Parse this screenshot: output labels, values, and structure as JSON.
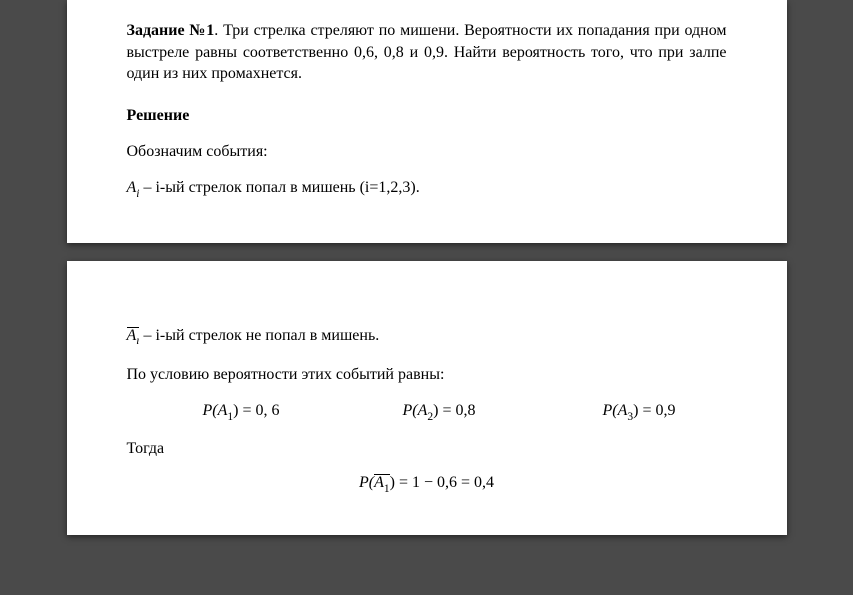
{
  "page1": {
    "task_label": "Задание №1",
    "task_text": ". Три стрелка стреляют по мишени. Вероятности их попадания при одном выстреле равны соответственно 0,6, 0,8 и 0,9. Найти вероятность того, что при залпе один из них промахнется.",
    "solution_label": "Решение",
    "events_label": "Обозначим события:",
    "Ai_symbol": "A",
    "Ai_sub": "i",
    "Ai_desc": " – i-ый стрелок попал в мишень (i=1,2,3)."
  },
  "page2": {
    "Abar_symbol": "A",
    "Abar_sub": "ı",
    "Abar_desc": " – i-ый стрелок не попал в мишень.",
    "cond_label": "По условию вероятности этих событий равны:",
    "P1": "P(A",
    "P1_sub": "1",
    "P1_after": ") = 0, 6",
    "P2": "P(A",
    "P2_sub": "2",
    "P2_after": ") = 0,8",
    "P3": "P(A",
    "P3_sub": "3",
    "P3_after": ") = 0,9",
    "then_label": "Тогда",
    "Pbar_before": "P(",
    "Pbar_sym": "A",
    "Pbar_sub": "1",
    "Pbar_after": ") = 1 − 0,6 = 0,4"
  }
}
